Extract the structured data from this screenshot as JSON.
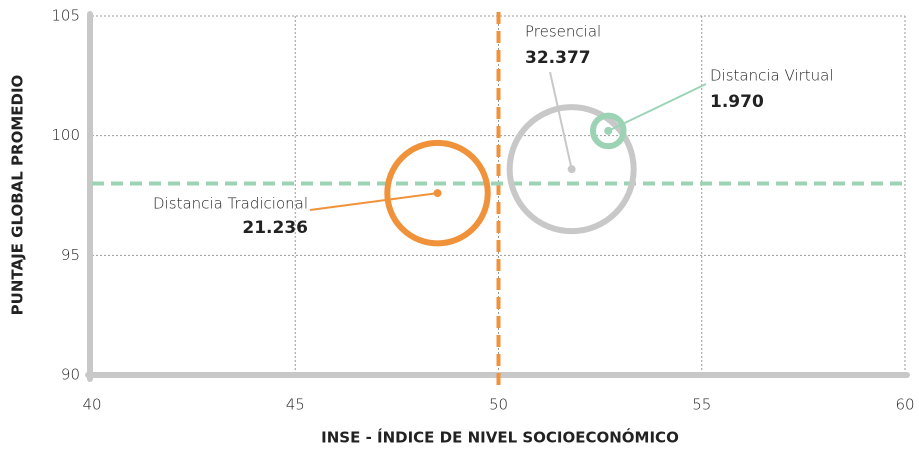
{
  "chart_data": {
    "type": "bubble",
    "x_label": "INSE - ÍNDICE DE NIVEL SOCIOECONÓMICO",
    "y_label": "PUNTAJE GLOBAL PROMEDIO",
    "xlim": [
      40,
      60
    ],
    "xticks": [
      40,
      45,
      50,
      55,
      60
    ],
    "ylim": [
      90,
      105
    ],
    "yticks": [
      90,
      95,
      100,
      105
    ],
    "grid": true,
    "reference_lines": [
      {
        "axis": "x",
        "value": 50,
        "color": "#f0923a"
      },
      {
        "axis": "y",
        "value": 98,
        "color": "#9dd3b5"
      }
    ],
    "series": [
      {
        "name": "Distancia Tradicional",
        "color": "#f0923a",
        "x": [
          48.5
        ],
        "values": [
          97.6
        ],
        "sizes": [
          21236
        ],
        "size_labels": [
          "21.236"
        ]
      },
      {
        "name": "Presencial",
        "color": "#c8c8c8",
        "x": [
          51.8
        ],
        "values": [
          98.6
        ],
        "sizes": [
          32377
        ],
        "size_labels": [
          "32.377"
        ]
      },
      {
        "name": "Distancia Virtual",
        "color": "#9dd3b5",
        "x": [
          52.7
        ],
        "values": [
          100.2
        ],
        "sizes": [
          1970
        ],
        "size_labels": [
          "1.970"
        ]
      }
    ]
  }
}
